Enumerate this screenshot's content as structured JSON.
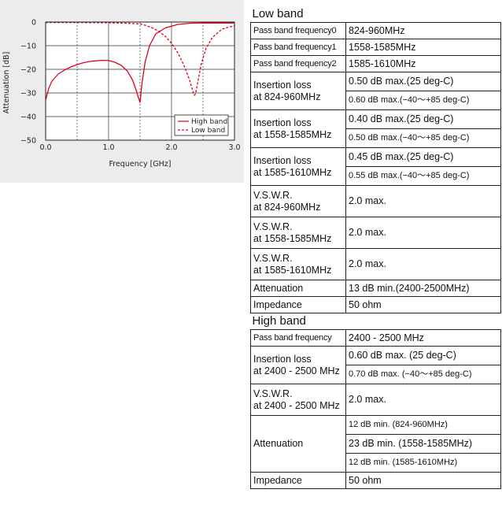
{
  "chart_data": {
    "type": "line",
    "title": "",
    "xlabel": "Frequency [GHz]",
    "ylabel": "Attenuation [dB]",
    "xlim": [
      0.0,
      3.0
    ],
    "ylim": [
      -50,
      0
    ],
    "x_ticks": [
      "0.0",
      "1.0",
      "2.0",
      "3.0"
    ],
    "y_ticks": [
      "0",
      "−10",
      "−20",
      "−30",
      "−40",
      "−50"
    ],
    "grid": "dashed vertical at 0.5, 1.5, 2.5 GHz; solid horizontal every 10 dB",
    "legend_position": "bottom-right",
    "series": [
      {
        "name": "High band",
        "style": "solid",
        "color": "#e0001b",
        "x": [
          0.0,
          0.05,
          0.1,
          0.2,
          0.3,
          0.4,
          0.5,
          0.6,
          0.7,
          0.8,
          0.9,
          1.0,
          1.1,
          1.2,
          1.3,
          1.38,
          1.44,
          1.48,
          1.5,
          1.53,
          1.58,
          1.65,
          1.75,
          1.9,
          2.1,
          2.3,
          2.5,
          2.7,
          3.0
        ],
        "y": [
          -33,
          -28,
          -25,
          -22,
          -20.3,
          -19,
          -18,
          -17.2,
          -16.7,
          -16.4,
          -16.2,
          -16.3,
          -17,
          -18.3,
          -20.8,
          -24.5,
          -29,
          -32.5,
          -34,
          -26,
          -17,
          -10,
          -5,
          -2.5,
          -1,
          -0.5,
          -0.4,
          -0.4,
          -0.4
        ]
      },
      {
        "name": "Low band",
        "style": "dashed",
        "color": "#e0001b",
        "x": [
          0.0,
          0.5,
          1.0,
          1.3,
          1.5,
          1.6,
          1.7,
          1.8,
          1.9,
          2.0,
          2.1,
          2.2,
          2.28,
          2.33,
          2.36,
          2.38,
          2.42,
          2.47,
          2.55,
          2.65,
          2.8,
          3.0
        ],
        "y": [
          -0.2,
          -0.2,
          -0.3,
          -0.5,
          -0.8,
          -1.5,
          -2.5,
          -4,
          -6,
          -9,
          -13,
          -18.5,
          -24,
          -28.5,
          -31,
          -30.5,
          -25,
          -18,
          -11,
          -6.5,
          -3,
          -1.5
        ]
      }
    ]
  },
  "table": {
    "low_band": {
      "heading": "Low band",
      "rows": [
        {
          "param": "Pass band frequency0",
          "value": "824-960MHz"
        },
        {
          "param": "Pass band frequency1",
          "value": "1558-1585MHz"
        },
        {
          "param": "Pass band frequency2",
          "value": "1585-1610MHz"
        },
        {
          "param1": "Insertion loss",
          "param2": "at 824-960MHz",
          "value1": "0.50 dB max.(25 deg-C)",
          "value2": "0.60 dB max.(−40～+85 deg-C)"
        },
        {
          "param1": "Insertion loss",
          "param2": "at 1558-1585MHz",
          "value1": "0.40 dB max.(25 deg-C)",
          "value2": "0.50 dB max.(−40～+85 deg-C)"
        },
        {
          "param1": "Insertion loss",
          "param2": "at 1585-1610MHz",
          "value1": "0.45 dB max.(25 deg-C)",
          "value2": "0.55 dB max.(−40～+85 deg-C)"
        },
        {
          "param1": "V.S.W.R.",
          "param2": "at 824-960MHz",
          "value": "2.0 max."
        },
        {
          "param1": "V.S.W.R.",
          "param2": "at 1558-1585MHz",
          "value": "2.0 max."
        },
        {
          "param1": "V.S.W.R.",
          "param2": "at 1585-1610MHz",
          "value": "2.0 max."
        },
        {
          "param": "Attenuation",
          "value": "13 dB min.(2400-2500MHz)"
        },
        {
          "param": "Impedance",
          "value": "50 ohm"
        }
      ]
    },
    "high_band": {
      "heading": "High band",
      "rows": [
        {
          "param": "Pass band frequency",
          "value": "2400 - 2500 MHz"
        },
        {
          "param1": "Insertion loss",
          "param2": "at 2400 - 2500 MHz",
          "value1": "0.60 dB max. (25 deg-C)",
          "value2": "0.70 dB max. (−40～+85 deg-C)"
        },
        {
          "param1": "V.S.W.R.",
          "param2": "at 2400 - 2500 MHz",
          "value": "2.0 max."
        },
        {
          "param": "Attenuation",
          "value1": "12 dB min. (824-960MHz)",
          "value2": "23 dB min. (1558-1585MHz)",
          "value3": "12 dB min. (1585-1610MHz)"
        },
        {
          "param": "Impedance",
          "value": "50 ohm"
        }
      ]
    }
  }
}
